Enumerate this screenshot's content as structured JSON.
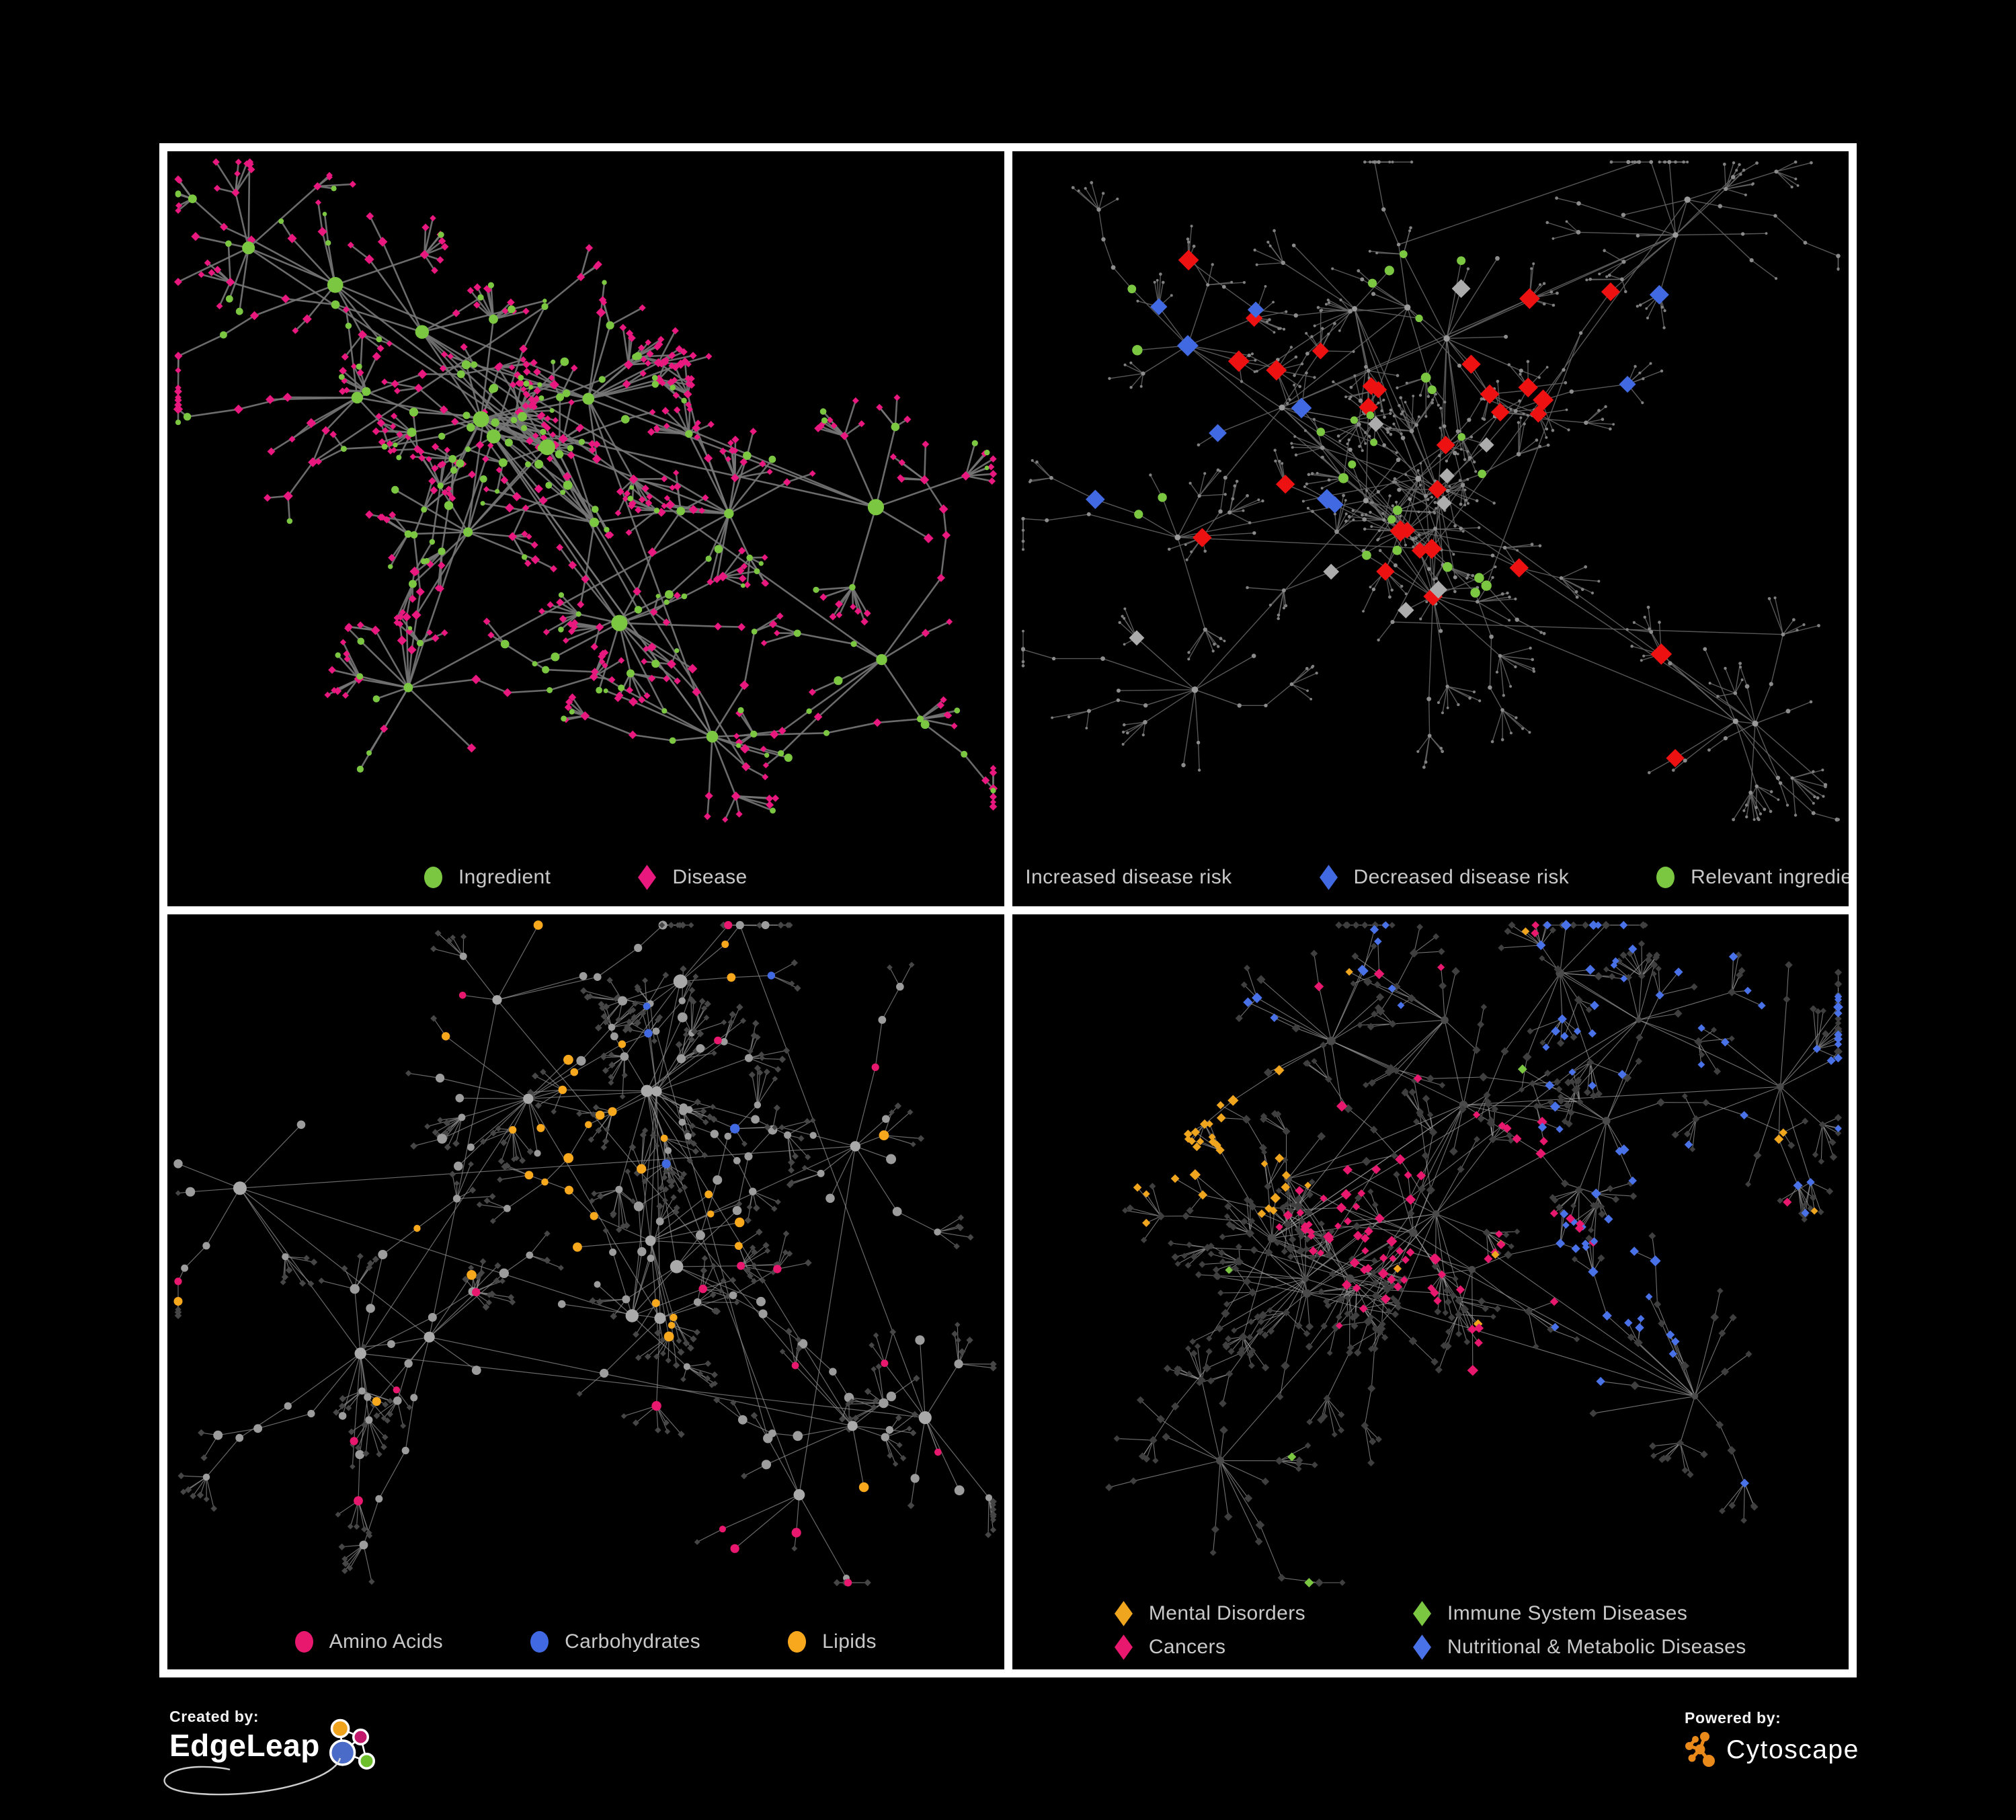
{
  "page": {
    "background": "#000000",
    "frame_color": "#FFFFFF",
    "legend_text_color": "#C9C9C9"
  },
  "panels": [
    {
      "id": "ingredient-disease",
      "position": "top-left",
      "style": "p1",
      "legend": {
        "layout": "row",
        "items": [
          {
            "label": "Ingredient",
            "shape": "circle",
            "color": "#7CC742"
          },
          {
            "label": "Disease",
            "shape": "diamond",
            "color": "#E8187F"
          }
        ]
      },
      "edge": {
        "color": "#777777",
        "width": 2.6,
        "opacity": 0.9
      },
      "palette": {
        "ingredient": "#7CC742",
        "disease": "#E8187F"
      },
      "burst_hubs": [
        2,
        5
      ],
      "gen": {
        "seed": 7,
        "hubs": 16,
        "coreHubs": 7,
        "hubExtra": 6,
        "childMin": 5,
        "childMax": 14,
        "chainProb": 0.16,
        "fanProb": 0.34,
        "singleProb": 0.25,
        "leafMax": 8,
        "crossEdges": 26
      }
    },
    {
      "id": "disease-risk",
      "position": "top-right",
      "style": "p2",
      "legend": {
        "layout": "row",
        "items": [
          {
            "label": "Increased disease risk",
            "shape": "diamond",
            "color": "#EE1111"
          },
          {
            "label": "Decreased disease risk",
            "shape": "diamond",
            "color": "#4169E1"
          },
          {
            "label": "Relevant ingredient",
            "shape": "circle",
            "color": "#7CC742"
          }
        ]
      },
      "edge": {
        "color": "#666666",
        "width": 1.4,
        "opacity": 0.85
      },
      "palette": {
        "increased": "#EE1111",
        "decreased": "#4169E1",
        "neutral": "#ACACAC",
        "ingredient": "#7CC742",
        "base_hub": "#9A9A9A",
        "base_mid": "#8C8C8C",
        "base_leaf": "#808080"
      },
      "highlights": {
        "increased": 27,
        "decreased": 8,
        "neutral": 9,
        "ingredient": 27
      },
      "gen": {
        "seed": 19,
        "hubs": 17,
        "coreHubs": 6,
        "hubExtra": 5,
        "childMin": 5,
        "childMax": 13,
        "chainProb": 0.3,
        "fanProb": 0.3,
        "singleProb": 0.22,
        "leafMax": 8,
        "crossEdges": 20
      }
    },
    {
      "id": "compound-classes",
      "position": "bottom-left",
      "style": "p3",
      "legend": {
        "layout": "row",
        "items": [
          {
            "label": "Amino Acids",
            "shape": "circle",
            "color": "#E8186F"
          },
          {
            "label": "Carbohydrates",
            "shape": "circle",
            "color": "#4169E1"
          },
          {
            "label": "Lipids",
            "shape": "circle",
            "color": "#F7A81C"
          }
        ]
      },
      "edge": {
        "color": "#8C8C8C",
        "width": 1.2,
        "opacity": 0.75
      },
      "palette": {
        "amino": "#E8186F",
        "carb": "#4169E1",
        "lipid": "#F7A81C",
        "other": "#9C9C9C",
        "hub": "#A9A9A9",
        "dim": "#464646"
      },
      "lipid_hub": 4,
      "gen": {
        "seed": 31,
        "hubs": 16,
        "coreHubs": 7,
        "hubExtra": 6,
        "childMin": 5,
        "childMax": 14,
        "chainProb": 0.18,
        "fanProb": 0.34,
        "singleProb": 0.24,
        "leafMax": 8,
        "crossEdges": 24
      }
    },
    {
      "id": "disease-classes",
      "position": "bottom-right",
      "style": "p4",
      "legend": {
        "layout": "grid2",
        "items": [
          {
            "label": "Mental Disorders",
            "shape": "diamond",
            "color": "#F0A51F"
          },
          {
            "label": "Immune System Diseases",
            "shape": "diamond",
            "color": "#7CC742"
          },
          {
            "label": "Cancers",
            "shape": "diamond",
            "color": "#E8186F"
          },
          {
            "label": "Nutritional & Metabolic Diseases",
            "shape": "diamond",
            "color": "#4A72E8"
          }
        ]
      },
      "edge": {
        "color": "#969696",
        "width": 1.1,
        "opacity": 0.75
      },
      "palette": {
        "mental": "#F0A51F",
        "immune": "#7CC742",
        "cancer": "#E8186F",
        "nutritional": "#4A72E8",
        "dim": "#3F3F3F",
        "hubc": "#4A4A4A"
      },
      "gen": {
        "seed": 47,
        "hubs": 17,
        "coreHubs": 7,
        "hubExtra": 6,
        "childMin": 5,
        "childMax": 14,
        "chainProb": 0.2,
        "fanProb": 0.34,
        "singleProb": 0.24,
        "leafMax": 8,
        "crossEdges": 24
      }
    }
  ],
  "footer": {
    "created_by_label": "Created by:",
    "created_by_brand": "EdgeLeap",
    "powered_by_label": "Powered by:",
    "powered_by_brand": "Cytoscape",
    "edgeleap_logo_colors": {
      "orange": "#F0A41E",
      "magenta": "#C2186B",
      "blue": "#4A6BC8",
      "green": "#6DBE2B",
      "outline": "#FFFFFF"
    },
    "cytoscape_logo_color": "#E98A1B"
  }
}
